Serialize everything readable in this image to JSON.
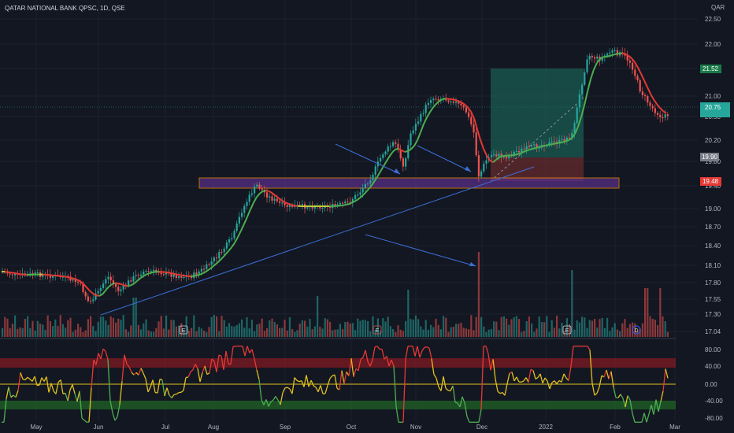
{
  "header": {
    "title": "QATAR NATIONAL BANK QPSC, 1D, QSE",
    "currency": "QAR"
  },
  "colors": {
    "background": "#131722",
    "up": "#26a69a",
    "down": "#ef5350",
    "ma_up": "#4caf50",
    "ma_down": "#e53935",
    "trend": "#2962ff",
    "zone": "#7e57c2",
    "zone_border": "#ff9800",
    "rsi_hi": "#b71c1c",
    "rsi_lo": "#1b5e20"
  },
  "chart_data": {
    "type": "candlestick",
    "ohlc_note": "",
    "price_axis_ticks": [
      "22.50",
      "22.00",
      "21.50",
      "21.00",
      "20.50",
      "20.20",
      "19.80",
      "19.40",
      "19.00",
      "18.70",
      "18.40",
      "18.10",
      "17.80",
      "17.55",
      "17.30",
      "17.04"
    ],
    "price_tags": [
      {
        "value": "21.52",
        "kind": "level"
      },
      {
        "value": "20.75",
        "kind": "last"
      },
      {
        "value": "19.90",
        "kind": "level"
      },
      {
        "value": "19.48",
        "kind": "zone"
      }
    ],
    "osc_axis_ticks": [
      "80.00",
      "40.00",
      "0.00",
      "-40.00",
      "-80.00"
    ],
    "x_labels": [
      "May",
      "Jun",
      "Jul",
      "Aug",
      "Sep",
      "Oct",
      "Nov",
      "Dec",
      "2022",
      "Feb",
      "Mar"
    ],
    "events": [
      {
        "label": "E",
        "month": "Jul"
      },
      {
        "label": "E",
        "month": "Oct"
      },
      {
        "label": "E",
        "month": "Jan"
      },
      {
        "label": "D",
        "month": "Feb"
      }
    ],
    "grid": true,
    "legend": "none"
  }
}
